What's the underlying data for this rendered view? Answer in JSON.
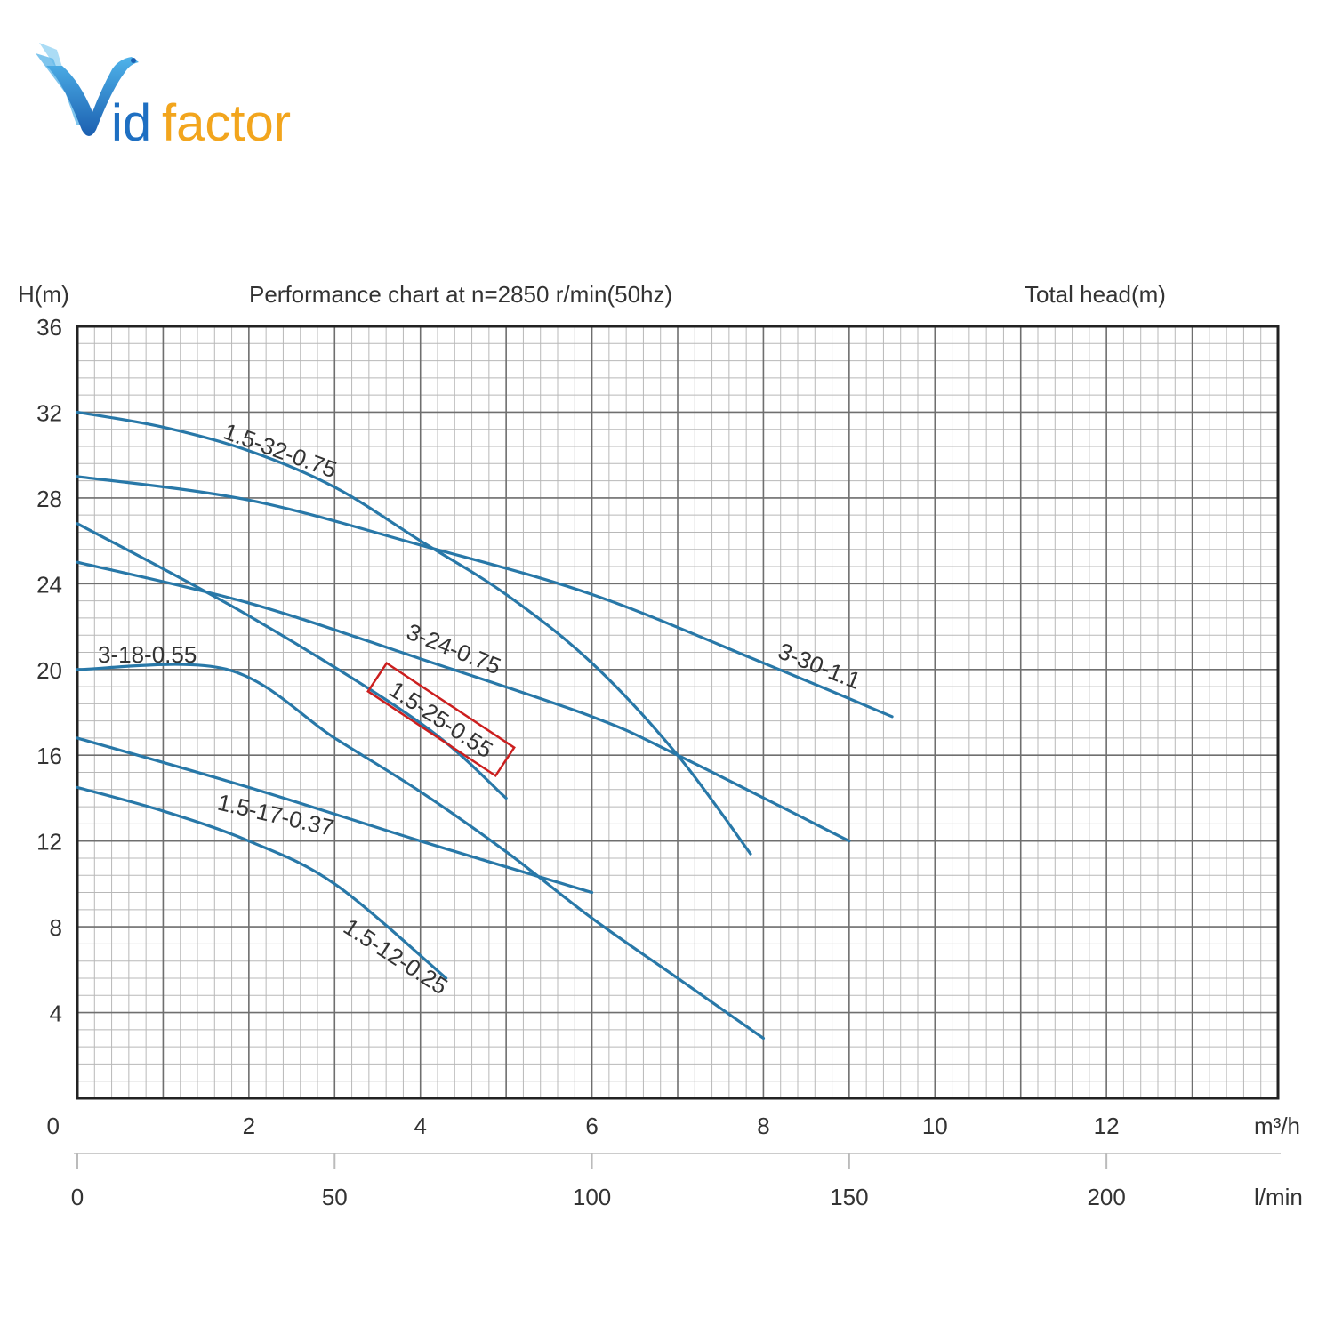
{
  "logo": {
    "text_v": "V",
    "text_id": "id",
    "text_factor": "factor"
  },
  "chart_data": {
    "type": "line",
    "title": "Performance chart at n=2850 r/min(50hz)",
    "ylabel": "H(m)",
    "ylabel_right": "Total head(m)",
    "ylim": [
      0,
      36
    ],
    "yticks": [
      "0",
      "4",
      "8",
      "12",
      "16",
      "20",
      "24",
      "28",
      "32",
      "36"
    ],
    "xlim": [
      0,
      14
    ],
    "xticks": [
      "2",
      "4",
      "6",
      "8",
      "10",
      "12"
    ],
    "xunit": "m³/h",
    "x2ticks": [
      "0",
      "50",
      "100",
      "150",
      "200"
    ],
    "x2unit": "l/min",
    "grid": true,
    "series": [
      {
        "name": "1.5-32-0.75",
        "x": [
          0,
          1,
          2,
          3,
          4,
          5,
          6,
          7,
          7.85
        ],
        "y": [
          32,
          31.3,
          30.2,
          28.5,
          26,
          23.5,
          20.3,
          16,
          11.4
        ]
      },
      {
        "name": "3-30-1.1",
        "x": [
          0,
          2,
          4,
          6,
          8,
          9.5
        ],
        "y": [
          29,
          27.9,
          25.8,
          23.5,
          20.3,
          17.8
        ]
      },
      {
        "name": "3-24-0.75",
        "x": [
          0,
          2,
          4,
          6,
          7,
          9
        ],
        "y": [
          25,
          23.1,
          20.5,
          17.8,
          16,
          12
        ]
      },
      {
        "name": "1.5-25-0.55",
        "x": [
          0,
          2,
          4,
          5
        ],
        "y": [
          26.8,
          22.5,
          17.5,
          14
        ]
      },
      {
        "name": "3-18-0.55",
        "x": [
          0,
          1.75,
          3,
          4,
          5,
          6,
          7,
          8
        ],
        "y": [
          20,
          20,
          16.8,
          14.3,
          11.5,
          8.4,
          5.6,
          2.8
        ]
      },
      {
        "name": "1.5-17-0.37",
        "x": [
          0,
          2,
          4,
          6
        ],
        "y": [
          16.8,
          14.5,
          12,
          9.6
        ]
      },
      {
        "name": "1.5-12-0.25",
        "x": [
          0,
          1,
          2,
          3,
          4.3
        ],
        "y": [
          14.5,
          13.4,
          12,
          10,
          5.6
        ]
      }
    ],
    "annotations": [
      {
        "text": "1.5-32-0.75",
        "series": "1.5-32-0.75",
        "highlighted": false
      },
      {
        "text": "3-30-1.1",
        "series": "3-30-1.1",
        "highlighted": false
      },
      {
        "text": "3-24-0.75",
        "series": "3-24-0.75",
        "highlighted": false
      },
      {
        "text": "1.5-25-0.55",
        "series": "1.5-25-0.55",
        "highlighted": true
      },
      {
        "text": "3-18-0.55",
        "series": "3-18-0.55",
        "highlighted": false
      },
      {
        "text": "1.5-17-0.37",
        "series": "1.5-17-0.37",
        "highlighted": false
      },
      {
        "text": "1.5-12-0.25",
        "series": "1.5-12-0.25",
        "highlighted": false
      }
    ],
    "colors": {
      "curve": "#2878a8",
      "grid_major": "#6f6f6f",
      "grid_minor": "#b8b8b8",
      "frame": "#222222",
      "highlight": "#cc1f1f"
    }
  }
}
